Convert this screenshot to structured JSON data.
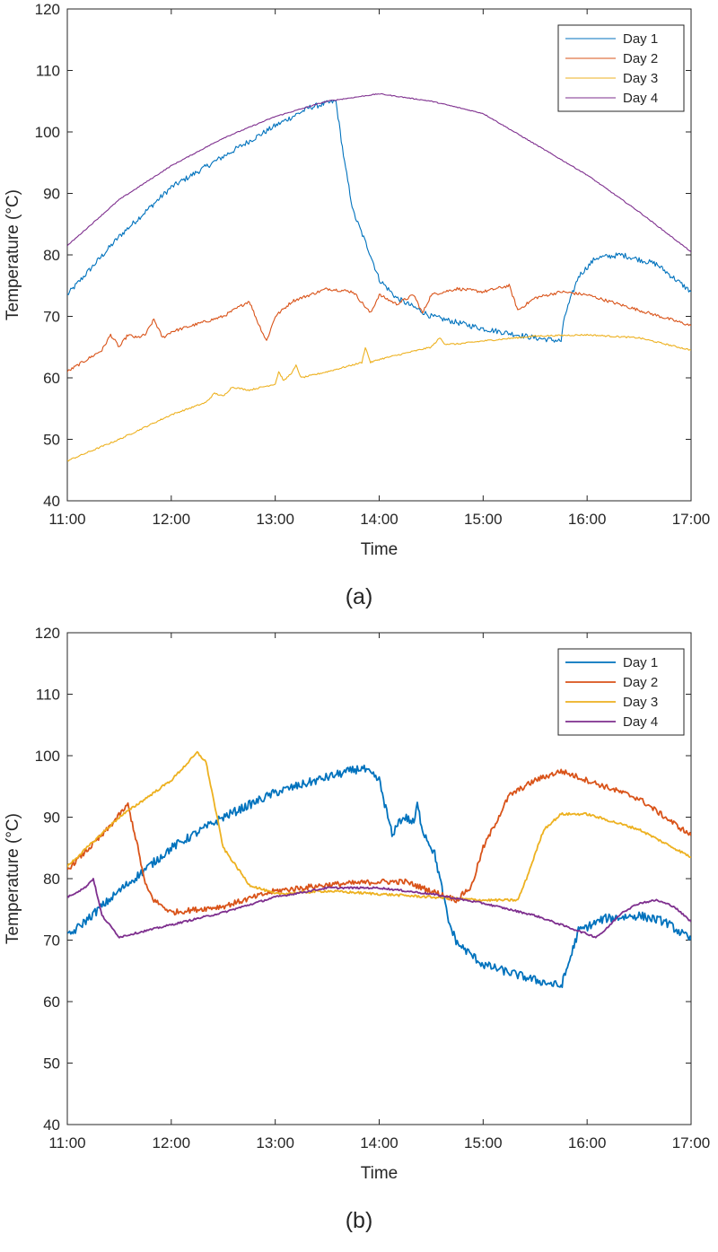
{
  "chart_data": [
    {
      "type": "line",
      "caption": "(a)",
      "xlabel": "Time",
      "ylabel": "Temperature (°C)",
      "xlim": [
        "11:00",
        "17:00"
      ],
      "ylim": [
        40,
        120
      ],
      "xticks": [
        "11:00",
        "12:00",
        "13:00",
        "14:00",
        "15:00",
        "16:00",
        "17:00"
      ],
      "yticks": [
        40,
        50,
        60,
        70,
        80,
        90,
        100,
        110,
        120
      ],
      "grid": false,
      "legend_position": "top-right",
      "line_width": "thin",
      "series": [
        {
          "name": "Day 1",
          "color": "#0072BD",
          "x": [
            "11:00",
            "11:30",
            "12:00",
            "12:30",
            "13:00",
            "13:20",
            "13:35",
            "13:40",
            "13:45",
            "13:55",
            "14:00",
            "14:10",
            "14:30",
            "15:00",
            "15:30",
            "15:45",
            "15:47",
            "15:55",
            "16:05",
            "16:20",
            "16:40",
            "17:00"
          ],
          "y": [
            73.5,
            83,
            91,
            96,
            101,
            104,
            105,
            95,
            87,
            80,
            76,
            73,
            70,
            68,
            66.5,
            66,
            70,
            76.5,
            79.5,
            80,
            78.5,
            74
          ]
        },
        {
          "name": "Day 2",
          "color": "#D95319",
          "x": [
            "11:00",
            "11:20",
            "11:25",
            "11:30",
            "11:35",
            "11:40",
            "11:45",
            "11:50",
            "11:55",
            "12:00",
            "12:30",
            "12:45",
            "12:50",
            "12:55",
            "13:00",
            "13:10",
            "13:20",
            "13:30",
            "13:45",
            "13:55",
            "14:00",
            "14:10",
            "14:20",
            "14:25",
            "14:30",
            "14:45",
            "15:00",
            "15:15",
            "15:20",
            "15:30",
            "15:45",
            "16:00",
            "16:30",
            "17:00"
          ],
          "y": [
            61,
            64.5,
            67,
            65,
            67,
            66.5,
            67,
            69.5,
            66.5,
            67.5,
            70,
            72.5,
            69,
            66,
            70,
            72.5,
            73.5,
            74.5,
            74,
            70.5,
            73.5,
            72,
            73.5,
            70.5,
            73.5,
            74.5,
            74,
            75,
            71,
            73,
            74,
            73.5,
            71,
            68.5
          ]
        },
        {
          "name": "Day 3",
          "color": "#EDB120",
          "x": [
            "11:00",
            "11:30",
            "12:00",
            "12:20",
            "12:25",
            "12:30",
            "12:35",
            "12:45",
            "13:00",
            "13:02",
            "13:05",
            "13:10",
            "13:12",
            "13:15",
            "13:30",
            "13:50",
            "13:52",
            "13:55",
            "14:00",
            "14:30",
            "14:35",
            "14:38",
            "14:45",
            "15:00",
            "15:30",
            "16:00",
            "16:30",
            "17:00"
          ],
          "y": [
            46.5,
            50,
            54,
            56,
            57.5,
            57,
            58.5,
            58,
            59,
            61,
            59.5,
            61,
            62,
            60,
            61,
            62.5,
            65,
            62.5,
            63,
            65,
            66.5,
            65.5,
            65.5,
            66,
            66.8,
            67,
            66.5,
            64.5
          ]
        },
        {
          "name": "Day 4",
          "color": "#7E2F8E",
          "x": [
            "11:00",
            "11:30",
            "12:00",
            "12:30",
            "13:00",
            "13:30",
            "14:00",
            "14:30",
            "15:00",
            "15:30",
            "16:00",
            "16:30",
            "17:00"
          ],
          "y": [
            81.5,
            89,
            94.5,
            99,
            102.5,
            105,
            106.2,
            105,
            103,
            98,
            93,
            87,
            80.5
          ]
        }
      ]
    },
    {
      "type": "line",
      "caption": "(b)",
      "xlabel": "Time",
      "ylabel": "Temperature (°C)",
      "xlim": [
        "11:00",
        "17:00"
      ],
      "ylim": [
        40,
        120
      ],
      "xticks": [
        "11:00",
        "12:00",
        "13:00",
        "14:00",
        "15:00",
        "16:00",
        "17:00"
      ],
      "yticks": [
        40,
        50,
        60,
        70,
        80,
        90,
        100,
        110,
        120
      ],
      "grid": false,
      "legend_position": "top-right",
      "line_width": "thick",
      "series": [
        {
          "name": "Day 1",
          "color": "#0072BD",
          "x": [
            "11:00",
            "11:30",
            "12:00",
            "12:30",
            "13:00",
            "13:30",
            "13:50",
            "14:00",
            "14:05",
            "14:08",
            "14:10",
            "14:15",
            "14:20",
            "14:22",
            "14:25",
            "14:32",
            "14:35",
            "14:40",
            "14:45",
            "15:00",
            "15:30",
            "15:45",
            "15:48",
            "15:55",
            "16:10",
            "16:30",
            "16:45",
            "17:00"
          ],
          "y": [
            70.5,
            78,
            85,
            90,
            94,
            96.5,
            98,
            96,
            90,
            86.5,
            89,
            90,
            89,
            92,
            88,
            84,
            80,
            73,
            69.5,
            66,
            63.5,
            62.5,
            65,
            71.5,
            73.5,
            74,
            73,
            70
          ]
        },
        {
          "name": "Day 2",
          "color": "#D95319",
          "x": [
            "11:00",
            "11:20",
            "11:35",
            "11:40",
            "11:45",
            "11:50",
            "12:00",
            "12:30",
            "13:00",
            "13:30",
            "14:00",
            "14:15",
            "14:30",
            "14:45",
            "14:50",
            "14:53",
            "15:00",
            "15:15",
            "15:30",
            "15:45",
            "16:00",
            "16:30",
            "17:00"
          ],
          "y": [
            81.5,
            87,
            92,
            86,
            79,
            76.5,
            74.5,
            75.5,
            78,
            79,
            79.5,
            79.5,
            78,
            76.5,
            78,
            78.5,
            85,
            93.5,
            96,
            97.5,
            96,
            93,
            87
          ]
        },
        {
          "name": "Day 3",
          "color": "#EDB120",
          "x": [
            "11:00",
            "11:30",
            "12:00",
            "12:15",
            "12:20",
            "12:30",
            "12:45",
            "13:00",
            "13:30",
            "14:00",
            "14:30",
            "15:00",
            "15:20",
            "15:25",
            "15:35",
            "15:45",
            "16:00",
            "16:30",
            "17:00"
          ],
          "y": [
            82,
            90,
            96,
            100.5,
            99,
            85,
            79,
            77.5,
            78,
            77.5,
            77,
            76.5,
            76.5,
            80,
            88,
            90.5,
            90.5,
            88,
            83.5
          ]
        },
        {
          "name": "Day 4",
          "color": "#7E2F8E",
          "x": [
            "11:00",
            "11:10",
            "11:15",
            "11:20",
            "11:30",
            "12:00",
            "12:30",
            "13:00",
            "13:30",
            "14:00",
            "14:30",
            "15:00",
            "15:30",
            "16:00",
            "16:05",
            "16:10",
            "16:20",
            "16:30",
            "16:40",
            "16:50",
            "17:00"
          ],
          "y": [
            77,
            78.5,
            80,
            74,
            70.5,
            72.5,
            74.5,
            77,
            78.5,
            78.5,
            77.5,
            76,
            74,
            71,
            70.5,
            71.5,
            74.5,
            76,
            76.5,
            75.5,
            73
          ]
        }
      ]
    }
  ]
}
